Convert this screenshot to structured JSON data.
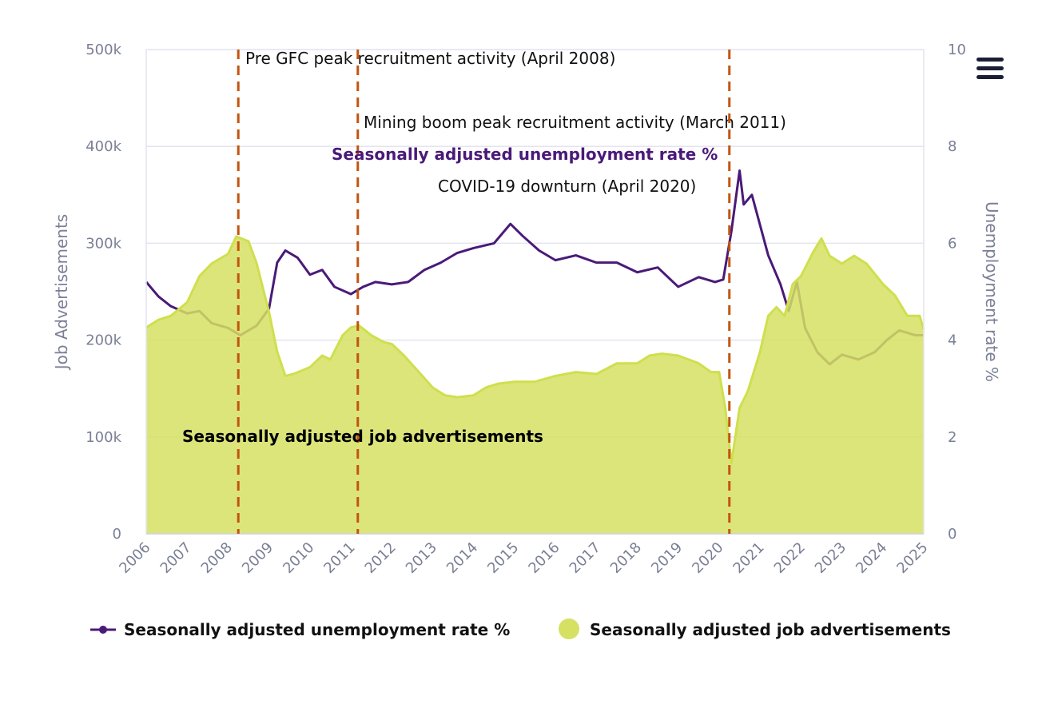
{
  "menu": {
    "icon": "hamburger-menu-icon"
  },
  "chart_data": {
    "type": "line+area",
    "x_axis": {
      "range": [
        2006,
        2025
      ],
      "ticks": [
        "2006",
        "2007",
        "2008",
        "2009",
        "2010",
        "2011",
        "2012",
        "2013",
        "2014",
        "2015",
        "2016",
        "2017",
        "2018",
        "2019",
        "2020",
        "2021",
        "2022",
        "2023",
        "2024",
        "2025"
      ]
    },
    "y_left": {
      "label": "Job Advertisements",
      "range": [
        0,
        500000
      ],
      "ticks": [
        "0",
        "100k",
        "200k",
        "300k",
        "400k",
        "500k"
      ],
      "tick_values": [
        0,
        100000,
        200000,
        300000,
        400000,
        500000
      ]
    },
    "y_right": {
      "label": "Unemployment rate %",
      "range": [
        0,
        10
      ],
      "ticks": [
        "0",
        "2",
        "4",
        "6",
        "8",
        "10"
      ],
      "tick_values": [
        0,
        2,
        4,
        6,
        8,
        10
      ]
    },
    "grid": true,
    "legend_placement": "bottom",
    "series": [
      {
        "name": "Seasonally adjusted unemployment rate %",
        "type": "line",
        "axis": "right",
        "color": "#4a1a78",
        "x": [
          2006.0,
          2006.3,
          2006.6,
          2007.0,
          2007.3,
          2007.6,
          2008.0,
          2008.3,
          2008.7,
          2009.0,
          2009.2,
          2009.4,
          2009.7,
          2010.0,
          2010.3,
          2010.6,
          2011.0,
          2011.3,
          2011.6,
          2012.0,
          2012.4,
          2012.8,
          2013.2,
          2013.6,
          2014.0,
          2014.5,
          2014.9,
          2015.2,
          2015.6,
          2016.0,
          2016.5,
          2017.0,
          2017.5,
          2018.0,
          2018.5,
          2019.0,
          2019.5,
          2019.9,
          2020.1,
          2020.3,
          2020.5,
          2020.6,
          2020.8,
          2021.2,
          2021.5,
          2021.7,
          2021.9,
          2022.1,
          2022.4,
          2022.7,
          2023.0,
          2023.4,
          2023.8,
          2024.1,
          2024.4,
          2024.8,
          2025.0
        ],
        "values": [
          5.2,
          4.9,
          4.7,
          4.55,
          4.6,
          4.35,
          4.25,
          4.1,
          4.3,
          4.65,
          5.6,
          5.85,
          5.7,
          5.35,
          5.45,
          5.1,
          4.95,
          5.1,
          5.2,
          5.15,
          5.2,
          5.45,
          5.6,
          5.8,
          5.9,
          6.0,
          6.4,
          6.15,
          5.85,
          5.65,
          5.75,
          5.6,
          5.6,
          5.4,
          5.5,
          5.1,
          5.3,
          5.2,
          5.25,
          6.25,
          7.5,
          6.8,
          7.0,
          5.75,
          5.15,
          4.6,
          5.2,
          4.25,
          3.75,
          3.5,
          3.7,
          3.6,
          3.75,
          4.0,
          4.2,
          4.1,
          4.1
        ]
      },
      {
        "name": "Seasonally adjusted job advertisements",
        "type": "area",
        "axis": "left",
        "color": "#d6e063",
        "x": [
          2006.0,
          2006.3,
          2006.6,
          2007.0,
          2007.3,
          2007.6,
          2008.0,
          2008.2,
          2008.5,
          2008.7,
          2009.0,
          2009.2,
          2009.4,
          2009.6,
          2010.0,
          2010.3,
          2010.5,
          2010.8,
          2011.0,
          2011.2,
          2011.5,
          2011.8,
          2012.0,
          2012.3,
          2012.6,
          2013.0,
          2013.3,
          2013.6,
          2014.0,
          2014.3,
          2014.6,
          2015.0,
          2015.5,
          2016.0,
          2016.5,
          2017.0,
          2017.5,
          2018.0,
          2018.3,
          2018.6,
          2019.0,
          2019.5,
          2019.8,
          2020.0,
          2020.15,
          2020.3,
          2020.5,
          2020.7,
          2021.0,
          2021.2,
          2021.4,
          2021.6,
          2021.8,
          2022.0,
          2022.3,
          2022.5,
          2022.7,
          2023.0,
          2023.3,
          2023.6,
          2024.0,
          2024.3,
          2024.6,
          2024.9,
          2025.0
        ],
        "values": [
          213000,
          221000,
          225000,
          239000,
          266000,
          279000,
          289000,
          307000,
          302000,
          279000,
          229000,
          188000,
          163000,
          165000,
          172000,
          184000,
          180000,
          205000,
          213000,
          215000,
          205000,
          198000,
          196000,
          184000,
          170000,
          151000,
          143000,
          141000,
          143000,
          151000,
          155000,
          157000,
          157000,
          163000,
          167000,
          165000,
          176000,
          176000,
          184000,
          186000,
          184000,
          176000,
          167000,
          167000,
          130000,
          73000,
          130000,
          147000,
          188000,
          225000,
          234000,
          225000,
          258000,
          266000,
          291000,
          305000,
          287000,
          279000,
          287000,
          279000,
          258000,
          246000,
          225000,
          225000,
          211000
        ]
      }
    ],
    "annotations": [
      {
        "x": 2008.25,
        "label": "Pre GFC peak recruitment activity (April 2008)",
        "style": "dashed",
        "color": "#c4540e"
      },
      {
        "x": 2011.17,
        "label": "Mining boom peak recruitment activity (March 2011)",
        "style": "dashed",
        "color": "#c4540e"
      },
      {
        "x": 2020.25,
        "label": "COVID-19 downturn (April 2020)",
        "style": "dashed",
        "color": "#c4540e"
      }
    ],
    "series_labels": {
      "unemployment": "Seasonally adjusted unemployment rate %",
      "job_ads": "Seasonally adjusted job advertisements"
    }
  }
}
